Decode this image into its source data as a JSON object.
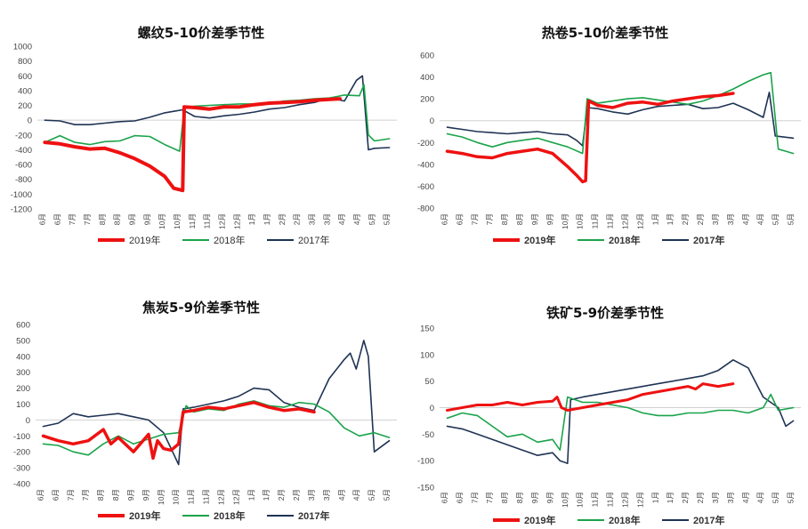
{
  "colors": {
    "y2019": "#ee1111",
    "y2018": "#1aa34a",
    "y2017": "#1f3354"
  },
  "chart_data": [
    {
      "type": "line",
      "title": "螺纹5-10价差季节性",
      "y_ticks": [
        "1000",
        "800",
        "600",
        "400",
        "200",
        "0",
        "-200",
        "-400",
        "-600",
        "-800",
        "-1000",
        "-1200"
      ],
      "ylim": [
        -1200,
        1000
      ],
      "x_ticks": [
        "6月",
        "6月",
        "7月",
        "7月",
        "8月",
        "8月",
        "9月",
        "9月",
        "10月",
        "10月",
        "11月",
        "11月",
        "12月",
        "12月",
        "1月",
        "1月",
        "2月",
        "2月",
        "3月",
        "3月",
        "4月",
        "4月",
        "5月",
        "5月"
      ],
      "legend": [
        "2019年",
        "2018年",
        "2017年"
      ],
      "series": [
        {
          "name": "2019年",
          "x": [
            0,
            1,
            2,
            3,
            4,
            5,
            6,
            7,
            8,
            8.6,
            9.2,
            9.3,
            10,
            11,
            12,
            13,
            14,
            15,
            16,
            17,
            18,
            19.7
          ],
          "values": [
            -300,
            -320,
            -360,
            -390,
            -380,
            -440,
            -520,
            -620,
            -760,
            -920,
            -950,
            180,
            170,
            150,
            180,
            180,
            210,
            230,
            240,
            250,
            270,
            290
          ]
        },
        {
          "name": "2018年",
          "x": [
            0,
            1,
            2,
            3,
            4,
            5,
            6,
            7,
            8,
            9,
            9.3,
            10,
            11,
            12,
            13,
            14,
            15,
            16,
            17,
            18,
            19,
            20,
            21,
            21.3,
            21.6,
            22,
            23
          ],
          "values": [
            -300,
            -210,
            -300,
            -330,
            -290,
            -280,
            -210,
            -220,
            -330,
            -420,
            160,
            190,
            200,
            210,
            220,
            220,
            230,
            260,
            270,
            290,
            300,
            340,
            330,
            480,
            -200,
            -280,
            -250
          ]
        },
        {
          "name": "2017年",
          "x": [
            0,
            1,
            2,
            3,
            4,
            5,
            6,
            7,
            8,
            8.6,
            9.2,
            10,
            11,
            12,
            13,
            14,
            15,
            16,
            17,
            18,
            19,
            20,
            20.8,
            21.2,
            21.6,
            22,
            23
          ],
          "values": [
            0,
            -10,
            -60,
            -60,
            -40,
            -20,
            -10,
            40,
            100,
            120,
            140,
            50,
            30,
            60,
            80,
            110,
            150,
            170,
            210,
            240,
            300,
            260,
            540,
            600,
            -400,
            -380,
            -370
          ]
        }
      ]
    },
    {
      "type": "line",
      "title": "热卷5-10价差季节性",
      "y_ticks": [
        "600",
        "400",
        "200",
        "0",
        "-200",
        "-400",
        "-600",
        "-800"
      ],
      "ylim": [
        -800,
        600
      ],
      "x_ticks": [
        "6月",
        "6月",
        "7月",
        "7月",
        "8月",
        "8月",
        "9月",
        "9月",
        "10月",
        "10月",
        "11月",
        "11月",
        "12月",
        "12月",
        "1月",
        "1月",
        "2月",
        "2月",
        "3月",
        "3月",
        "4月",
        "4月",
        "5月",
        "5月"
      ],
      "legend": [
        "2019年",
        "2018年",
        "2017年"
      ],
      "series": [
        {
          "name": "2019年",
          "x": [
            0,
            1,
            2,
            3,
            4,
            5,
            6,
            7,
            8,
            8.6,
            9,
            9.2,
            9.4,
            10,
            11,
            12,
            13,
            14,
            15,
            16,
            17,
            18,
            19
          ],
          "values": [
            -280,
            -300,
            -330,
            -340,
            -300,
            -280,
            -260,
            -300,
            -420,
            -500,
            -560,
            -550,
            180,
            140,
            120,
            160,
            170,
            150,
            180,
            200,
            220,
            230,
            250
          ]
        },
        {
          "name": "2018年",
          "x": [
            0,
            1,
            2,
            3,
            4,
            5,
            6,
            7,
            8,
            9,
            9.3,
            10,
            11,
            12,
            13,
            14,
            15,
            16,
            17,
            18,
            19,
            20,
            21,
            21.5,
            22,
            22.5,
            23
          ],
          "values": [
            -120,
            -150,
            -200,
            -240,
            -200,
            -180,
            -160,
            -200,
            -240,
            -300,
            200,
            160,
            180,
            200,
            210,
            190,
            170,
            150,
            180,
            230,
            290,
            360,
            420,
            440,
            -260,
            -280,
            -300
          ]
        },
        {
          "name": "2017年",
          "x": [
            0,
            1,
            2,
            3,
            4,
            5,
            6,
            7,
            8,
            8.6,
            9,
            9.3,
            10,
            11,
            12,
            13,
            14,
            15,
            16,
            17,
            18,
            19,
            20,
            21,
            21.4,
            21.8,
            23
          ],
          "values": [
            -60,
            -80,
            -100,
            -110,
            -120,
            -110,
            -100,
            -120,
            -130,
            -180,
            -230,
            120,
            110,
            80,
            60,
            100,
            130,
            140,
            150,
            110,
            120,
            160,
            100,
            30,
            260,
            -140,
            -160
          ]
        }
      ]
    },
    {
      "type": "line",
      "title": "焦炭5-9价差季节性",
      "y_ticks": [
        "600",
        "500",
        "400",
        "300",
        "200",
        "100",
        "0",
        "-100",
        "-200",
        "-300",
        "-400"
      ],
      "ylim": [
        -400,
        600
      ],
      "x_ticks": [
        "6月",
        "6月",
        "7月",
        "7月",
        "8月",
        "8月",
        "9月",
        "9月",
        "10月",
        "10月",
        "11月",
        "11月",
        "12月",
        "12月",
        "1月",
        "1月",
        "2月",
        "2月",
        "3月",
        "3月",
        "4月",
        "4月",
        "5月",
        "5月"
      ],
      "legend": [
        "2019年",
        "2018年",
        "2017年"
      ],
      "series": [
        {
          "name": "2019年",
          "x": [
            0,
            1,
            2,
            3,
            4,
            4.5,
            5,
            6,
            7,
            7.3,
            7.6,
            8,
            8.5,
            9,
            9.3,
            10,
            11,
            12,
            13,
            14,
            15,
            16,
            17,
            18
          ],
          "values": [
            -100,
            -130,
            -150,
            -130,
            -60,
            -150,
            -110,
            -200,
            -90,
            -240,
            -130,
            -180,
            -190,
            -150,
            50,
            60,
            80,
            70,
            90,
            110,
            80,
            60,
            70,
            50
          ]
        },
        {
          "name": "2018年",
          "x": [
            0,
            1,
            2,
            3,
            4,
            5,
            6,
            7,
            8,
            9,
            9.5,
            10,
            11,
            12,
            13,
            14,
            15,
            16,
            17,
            18,
            19,
            20,
            21,
            22,
            23
          ],
          "values": [
            -150,
            -160,
            -200,
            -220,
            -150,
            -100,
            -150,
            -120,
            -90,
            -80,
            90,
            50,
            70,
            60,
            100,
            120,
            90,
            80,
            110,
            100,
            50,
            -50,
            -100,
            -80,
            -110
          ]
        },
        {
          "name": "2017年",
          "x": [
            0,
            1,
            2,
            3,
            4,
            5,
            6,
            7,
            8,
            8.5,
            9,
            9.3,
            10,
            11,
            12,
            13,
            14,
            15,
            16,
            17,
            18,
            19,
            20,
            20.4,
            20.8,
            21.3,
            21.6,
            22,
            23
          ],
          "values": [
            -40,
            -20,
            40,
            20,
            30,
            40,
            20,
            0,
            -80,
            -180,
            -280,
            70,
            80,
            100,
            120,
            150,
            200,
            190,
            110,
            80,
            60,
            260,
            380,
            420,
            320,
            500,
            400,
            -200,
            -130
          ]
        }
      ]
    },
    {
      "type": "line",
      "title": "铁矿5-9价差季节性",
      "y_ticks": [
        "150",
        "100",
        "50",
        "0",
        "-50",
        "-100",
        "-150"
      ],
      "ylim": [
        -150,
        150
      ],
      "x_ticks": [
        "6月",
        "6月",
        "7月",
        "7月",
        "8月",
        "8月",
        "9月",
        "9月",
        "10月",
        "10月",
        "11月",
        "11月",
        "12月",
        "12月",
        "1月",
        "1月",
        "2月",
        "2月",
        "3月",
        "3月",
        "4月",
        "4月",
        "5月",
        "5月"
      ],
      "legend": [
        "2019年",
        "2018年",
        "2017年"
      ],
      "series": [
        {
          "name": "2019年",
          "x": [
            0,
            1,
            2,
            3,
            4,
            5,
            6,
            7,
            7.3,
            7.6,
            8,
            9,
            10,
            11,
            12,
            13,
            14,
            15,
            16,
            16.5,
            17,
            18,
            19
          ],
          "values": [
            -5,
            0,
            5,
            5,
            10,
            5,
            10,
            12,
            20,
            0,
            -5,
            0,
            5,
            10,
            15,
            25,
            30,
            35,
            40,
            35,
            45,
            40,
            45
          ]
        },
        {
          "name": "2018年",
          "x": [
            0,
            1,
            2,
            3,
            4,
            5,
            6,
            7,
            7.5,
            8,
            9,
            10,
            11,
            12,
            13,
            14,
            15,
            16,
            17,
            18,
            19,
            20,
            21,
            21.5,
            22,
            23
          ],
          "values": [
            -20,
            -10,
            -15,
            -35,
            -55,
            -50,
            -65,
            -60,
            -80,
            20,
            10,
            10,
            5,
            0,
            -10,
            -15,
            -15,
            -10,
            -10,
            -5,
            -5,
            -10,
            0,
            25,
            -5,
            0
          ]
        },
        {
          "name": "2017年",
          "x": [
            0,
            1,
            2,
            3,
            4,
            5,
            6,
            7,
            7.5,
            8,
            8.2,
            9,
            10,
            11,
            12,
            13,
            14,
            15,
            16,
            17,
            18,
            18.5,
            19,
            20,
            21,
            22,
            22.5,
            23
          ],
          "values": [
            -35,
            -40,
            -50,
            -60,
            -70,
            -80,
            -90,
            -85,
            -100,
            -105,
            15,
            20,
            25,
            30,
            35,
            40,
            45,
            50,
            55,
            60,
            70,
            80,
            90,
            75,
            20,
            0,
            -35,
            -25
          ]
        }
      ]
    }
  ]
}
